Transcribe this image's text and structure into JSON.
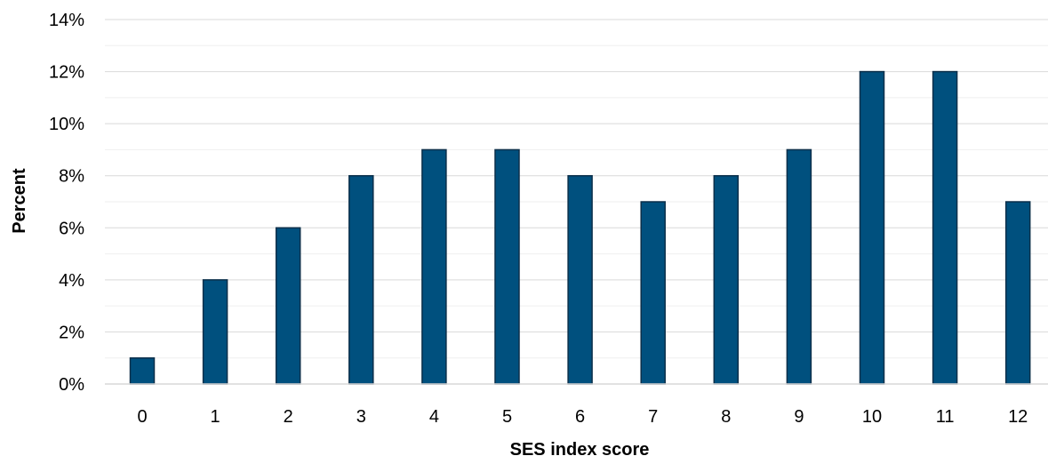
{
  "chart_data": {
    "type": "bar",
    "title": "",
    "xlabel": "SES index score",
    "ylabel": "Percent",
    "categories": [
      "0",
      "1",
      "2",
      "3",
      "4",
      "5",
      "6",
      "7",
      "8",
      "9",
      "10",
      "11",
      "12"
    ],
    "values": [
      1,
      4,
      6,
      8,
      9,
      9,
      8,
      7,
      8,
      9,
      12,
      12,
      7
    ],
    "value_unit": "%",
    "ylim": [
      0,
      14
    ],
    "yticks": [
      "0%",
      "2%",
      "4%",
      "6%",
      "8%",
      "10%",
      "12%",
      "14%"
    ],
    "grid": true,
    "legend": "none",
    "bar_color": "#00507e"
  }
}
